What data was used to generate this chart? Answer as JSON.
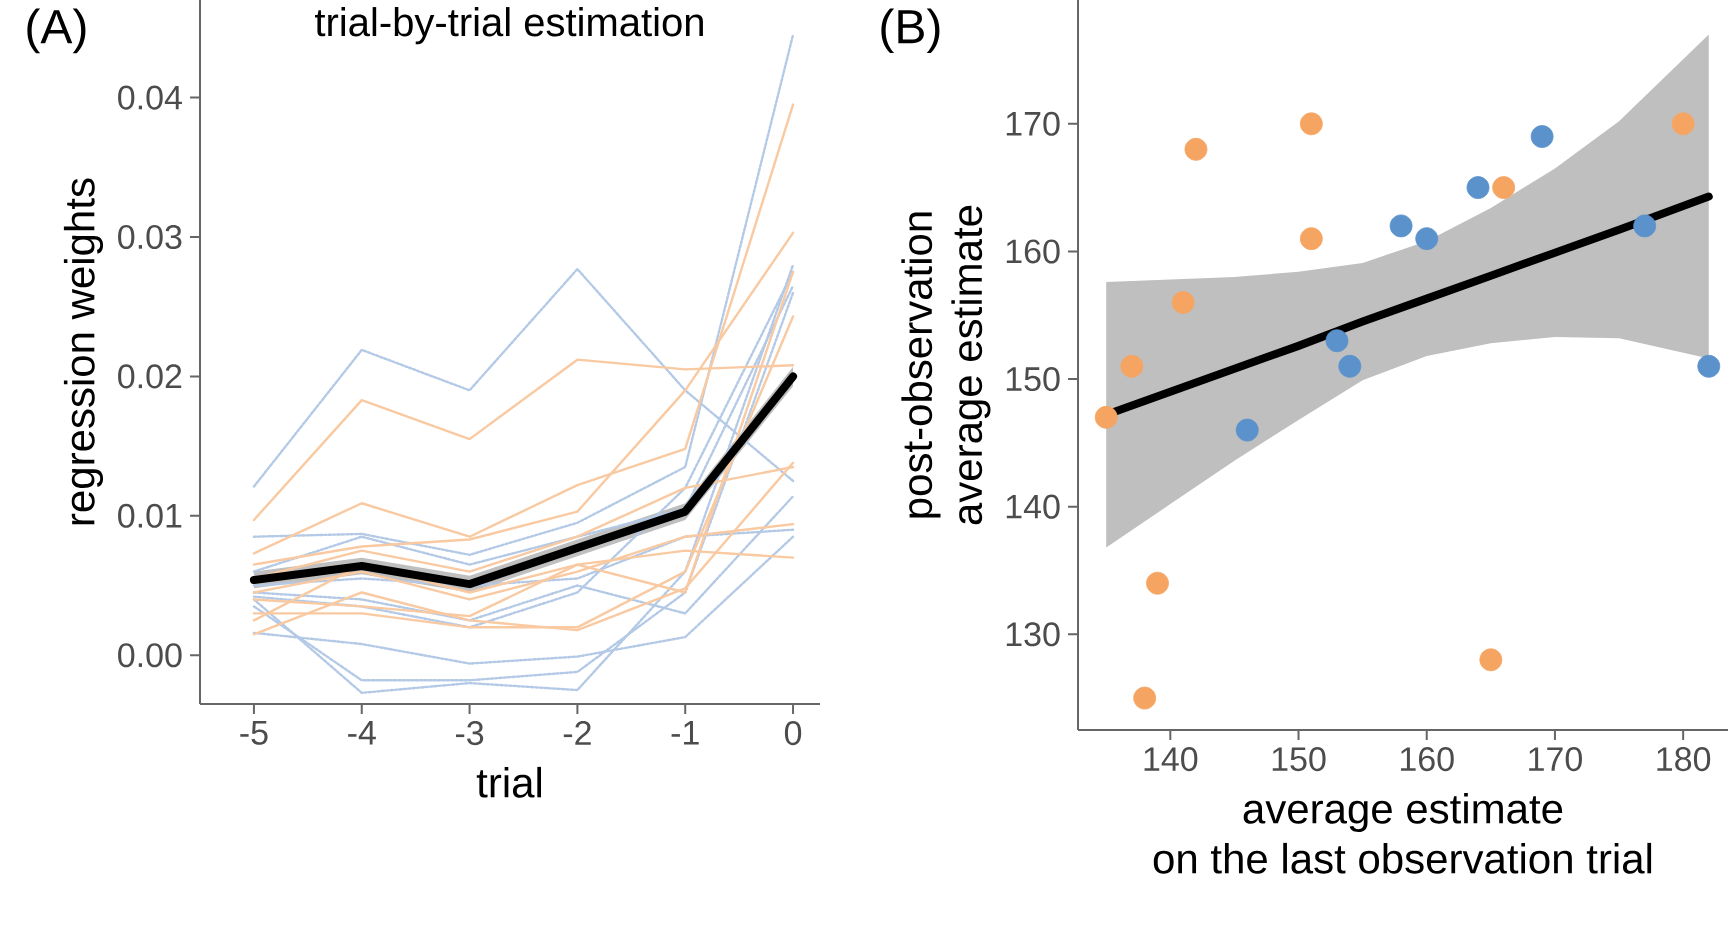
{
  "chart_data": [
    {
      "type": "line",
      "title": "trial-by-trial estimation",
      "xlabel": "trial",
      "ylabel": "regression weights",
      "annotations": [
        "(A)"
      ],
      "x": [
        -5,
        -4,
        -3,
        -2,
        -1,
        0
      ],
      "xlim": [
        -5.5,
        0.25
      ],
      "xticks": [
        -5,
        -4,
        -3,
        -2,
        -1,
        0
      ],
      "ylim": [
        -0.0035,
        0.047
      ],
      "yticks": [
        {
          "value": 0,
          "label": "0.00"
        },
        {
          "value": 0.01,
          "label": "0.01"
        },
        {
          "value": 0.02,
          "label": "0.02"
        },
        {
          "value": 0.03,
          "label": "0.03"
        },
        {
          "value": 0.04,
          "label": "0.04"
        }
      ],
      "series": [
        {
          "color": "#b3c9e6",
          "line_style": "dotted",
          "values": [
            0.0121,
            0.0219,
            0.019,
            0.0277,
            0.019,
            0.0125
          ]
        },
        {
          "color": "#b3c9e6",
          "line_style": "dotted",
          "values": [
            0.0085,
            0.0087,
            0.0072,
            0.0095,
            0.0135,
            0.0445
          ]
        },
        {
          "color": "#b3c9e6",
          "line_style": "dotted",
          "values": [
            0.0016,
            0.0008,
            -0.0006,
            -0.0001,
            0.0013,
            0.0085
          ]
        },
        {
          "color": "#b3c9e6",
          "line_style": "dotted",
          "values": [
            0.004,
            -0.0027,
            -0.002,
            -0.0025,
            0.006,
            0.028
          ]
        },
        {
          "color": "#b3c9e6",
          "line_style": "dotted",
          "values": [
            0.0035,
            -0.0018,
            -0.0018,
            -0.0012,
            0.0045,
            0.026
          ]
        },
        {
          "color": "#b3c9e6",
          "line_style": "dotted",
          "values": [
            0.006,
            0.0085,
            0.0065,
            0.0085,
            0.0105,
            0.0265
          ]
        },
        {
          "color": "#b3c9e6",
          "line_style": "dotted",
          "values": [
            0.0045,
            0.004,
            0.0025,
            0.005,
            0.003,
            0.0114
          ]
        },
        {
          "color": "#b3c9e6",
          "line_style": "dotted",
          "values": [
            0.005,
            0.0055,
            0.005,
            0.0055,
            0.0085,
            0.009
          ]
        },
        {
          "color": "#b3c9e6",
          "line_style": "dotted",
          "values": [
            0.0042,
            0.0035,
            0.002,
            0.0045,
            0.012,
            0.0275
          ]
        },
        {
          "color": "#f9c9a1",
          "line_style": "solid",
          "values": [
            0.0097,
            0.0183,
            0.0155,
            0.0212,
            0.0205,
            0.0208
          ]
        },
        {
          "color": "#f9c9a1",
          "line_style": "solid",
          "values": [
            0.0073,
            0.0109,
            0.0085,
            0.0122,
            0.0148,
            0.0395
          ]
        },
        {
          "color": "#f9c9a1",
          "line_style": "solid",
          "values": [
            0.0065,
            0.0078,
            0.0083,
            0.0103,
            0.019,
            0.0303
          ]
        },
        {
          "color": "#f9c9a1",
          "line_style": "solid",
          "values": [
            0.0015,
            0.0045,
            0.0025,
            0.0018,
            0.0048,
            0.0138
          ]
        },
        {
          "color": "#f9c9a1",
          "line_style": "solid",
          "values": [
            0.003,
            0.003,
            0.002,
            0.002,
            0.006,
            0.0243
          ]
        },
        {
          "color": "#f9c9a1",
          "line_style": "solid",
          "values": [
            0.0045,
            0.006,
            0.004,
            0.006,
            0.0085,
            0.0094
          ]
        },
        {
          "color": "#f9c9a1",
          "line_style": "solid",
          "values": [
            0.0025,
            0.0065,
            0.0045,
            0.0065,
            0.0075,
            0.007
          ]
        },
        {
          "color": "#f9c9a1",
          "line_style": "solid",
          "values": [
            0.0055,
            0.0075,
            0.006,
            0.0085,
            0.012,
            0.0135
          ]
        },
        {
          "color": "#f9c9a1",
          "line_style": "solid",
          "values": [
            0.004,
            0.0035,
            0.0028,
            0.0065,
            0.0045,
            0.0275
          ]
        },
        {
          "color": "#000000",
          "line_style": "solid",
          "values": [
            0.0054,
            0.0064,
            0.0051,
            0.0077,
            0.0103,
            0.02
          ],
          "lower": [
            0.0048,
            0.0058,
            0.0045,
            0.0071,
            0.0097,
            0.0193
          ],
          "upper": [
            0.006,
            0.007,
            0.0057,
            0.0083,
            0.0109,
            0.0207
          ]
        }
      ]
    },
    {
      "type": "scatter",
      "xlabel": "average estimate\non the last observation trial",
      "ylabel": "post-observation\naverage estimate",
      "annotations": [
        "(B)"
      ],
      "xlim": [
        132.8,
        183.5
      ],
      "xticks": [
        140,
        150,
        160,
        170,
        180
      ],
      "ylim": [
        122.5,
        179.7
      ],
      "yticks": [
        130,
        140,
        150,
        160,
        170
      ],
      "series": [
        {
          "type": "line",
          "color": "#000000",
          "x": [
            135,
            140,
            145,
            150,
            155,
            160,
            165,
            170,
            175,
            182
          ],
          "values": [
            147.2,
            149.0,
            150.8,
            152.6,
            154.5,
            156.3,
            158.1,
            159.9,
            161.7,
            164.3
          ],
          "lower": [
            136.8,
            140.2,
            143.6,
            146.8,
            149.9,
            151.8,
            152.8,
            153.3,
            153.2,
            151.6
          ],
          "upper": [
            157.6,
            157.8,
            158.0,
            158.4,
            159.1,
            160.8,
            163.4,
            166.5,
            170.2,
            177.0
          ]
        },
        {
          "color": "#f5a462",
          "x": [
            135,
            137,
            138,
            139,
            141,
            142,
            151,
            151,
            165,
            166,
            180
          ],
          "values": [
            147,
            151,
            125,
            134,
            156,
            168,
            170,
            161,
            128,
            165,
            170
          ]
        },
        {
          "color": "#5b92cc",
          "x": [
            146,
            153,
            154,
            158,
            160,
            164,
            169,
            177,
            182
          ],
          "values": [
            146,
            153,
            151,
            162,
            161,
            165,
            169,
            162,
            151
          ]
        }
      ]
    }
  ]
}
